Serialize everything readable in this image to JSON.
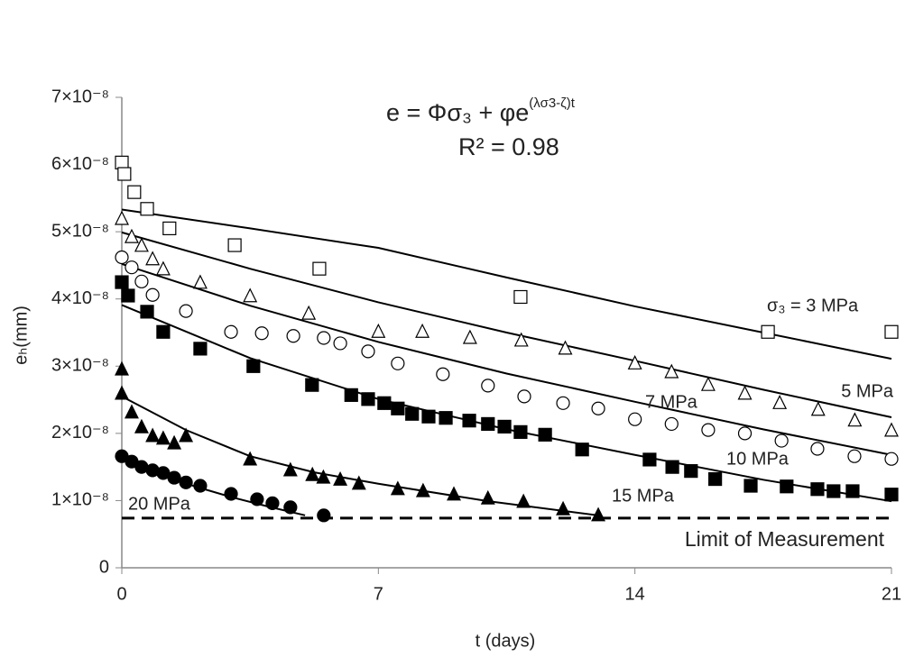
{
  "chart_data": {
    "type": "scatter",
    "equation": "e =  Φσ₃ + φe",
    "equation_exponent": "(λσ3-ζ)t",
    "r_squared": "R² = 0.98",
    "xlabel": "t (days)",
    "ylabel": "eₕ(mm)",
    "xlim": [
      0,
      21
    ],
    "xticks": [
      0,
      7,
      14,
      21
    ],
    "ylim": [
      0,
      7e-08
    ],
    "yticks": [
      0,
      {
        "value": 1e-08,
        "label": "1×10⁻⁸"
      },
      {
        "value": 2e-08,
        "label": "2×10⁻⁸"
      },
      {
        "value": 3e-08,
        "label": "3×10⁻⁸"
      },
      {
        "value": 4e-08,
        "label": "4×10⁻⁸"
      },
      {
        "value": 5e-08,
        "label": "5×10⁻⁸"
      },
      {
        "value": 6e-08,
        "label": "6×10⁻⁸"
      },
      {
        "value": 7e-08,
        "label": "7×10⁻⁸"
      }
    ],
    "limit_line": {
      "value": 7.4e-09,
      "label": "Limit of Measurement"
    },
    "series": [
      {
        "name": "σ₃  = 3 MPa",
        "marker": "square",
        "filled": false,
        "color": "#000000",
        "x": [
          0,
          0.07,
          0.34,
          0.69,
          1.3,
          3.08,
          5.39,
          10.88,
          17.63,
          21
        ],
        "values": [
          6.03e-08,
          5.86e-08,
          5.59e-08,
          5.34e-08,
          5.05e-08,
          4.8e-08,
          4.45e-08,
          4.03e-08,
          3.51e-08,
          3.51e-08
        ],
        "fit": {
          "x": [
            0,
            3.5,
            7,
            10.5,
            14,
            17.5,
            21
          ],
          "values": [
            5.33e-08,
            5.05e-08,
            4.76e-08,
            4.32e-08,
            3.89e-08,
            3.5e-08,
            3.11e-08
          ]
        }
      },
      {
        "name": "5 MPa",
        "marker": "triangle",
        "filled": false,
        "color": "#000000",
        "x": [
          0,
          0.27,
          0.54,
          0.84,
          1.13,
          2.14,
          3.5,
          5.1,
          7.0,
          8.2,
          9.5,
          10.9,
          12.1,
          14.0,
          15.0,
          16.0,
          17.0,
          17.95,
          19.0,
          20.0,
          21.0
        ],
        "values": [
          5.19e-08,
          4.92e-08,
          4.79e-08,
          4.59e-08,
          4.44e-08,
          4.24e-08,
          4.04e-08,
          3.78e-08,
          3.51e-08,
          3.51e-08,
          3.42e-08,
          3.38e-08,
          3.26e-08,
          3.04e-08,
          2.91e-08,
          2.72e-08,
          2.59e-08,
          2.45e-08,
          2.35e-08,
          2.19e-08,
          2.04e-08
        ],
        "fit": {
          "x": [
            0,
            3.5,
            7,
            10.5,
            14,
            17.5,
            21
          ],
          "values": [
            4.99e-08,
            4.45e-08,
            3.95e-08,
            3.5e-08,
            3.08e-08,
            2.65e-08,
            2.24e-08
          ]
        }
      },
      {
        "name": "7 MPa",
        "marker": "circle",
        "filled": false,
        "color": "#000000",
        "x": [
          0,
          0.27,
          0.54,
          0.84,
          1.75,
          2.98,
          3.82,
          4.68,
          5.51,
          5.96,
          6.72,
          7.53,
          8.76,
          9.99,
          10.98,
          12.04,
          13.0,
          14.0,
          15.0,
          16.0,
          17.0,
          18.0,
          18.98,
          19.99,
          21.0
        ],
        "values": [
          4.62e-08,
          4.47e-08,
          4.26e-08,
          4.06e-08,
          3.82e-08,
          3.51e-08,
          3.49e-08,
          3.45e-08,
          3.42e-08,
          3.34e-08,
          3.22e-08,
          3.04e-08,
          2.88e-08,
          2.71e-08,
          2.55e-08,
          2.45e-08,
          2.37e-08,
          2.21e-08,
          2.14e-08,
          2.05e-08,
          2e-08,
          1.89e-08,
          1.77e-08,
          1.66e-08,
          1.62e-08
        ],
        "fit": {
          "x": [
            0,
            3.5,
            7,
            10.5,
            14,
            17.5,
            21
          ],
          "values": [
            4.52e-08,
            3.9e-08,
            3.36e-08,
            2.89e-08,
            2.47e-08,
            2.06e-08,
            1.68e-08
          ]
        }
      },
      {
        "name": "10 MPa",
        "marker": "square",
        "filled": true,
        "color": "#000000",
        "x": [
          0,
          0.17,
          0.69,
          1.13,
          2.14,
          3.59,
          5.19,
          6.26,
          6.72,
          7.16,
          7.53,
          7.92,
          8.37,
          8.84,
          9.48,
          9.99,
          10.44,
          10.88,
          11.55,
          12.56,
          14.4,
          15.02,
          15.53,
          16.19,
          17.16,
          18.14,
          18.98,
          19.42,
          19.94,
          21.0
        ],
        "values": [
          4.25e-08,
          4.05e-08,
          3.81e-08,
          3.51e-08,
          3.26e-08,
          3e-08,
          2.72e-08,
          2.57e-08,
          2.51e-08,
          2.45e-08,
          2.37e-08,
          2.29e-08,
          2.25e-08,
          2.23e-08,
          2.19e-08,
          2.14e-08,
          2.1e-08,
          2.02e-08,
          1.98e-08,
          1.76e-08,
          1.61e-08,
          1.5e-08,
          1.44e-08,
          1.32e-08,
          1.22e-08,
          1.21e-08,
          1.17e-08,
          1.14e-08,
          1.14e-08,
          1.09e-08
        ],
        "fit": {
          "x": [
            0,
            3.5,
            7,
            10.5,
            14,
            17.5,
            21
          ],
          "values": [
            3.91e-08,
            3.12e-08,
            2.51e-08,
            2.06e-08,
            1.68e-08,
            1.31e-08,
            9.9e-09
          ]
        }
      },
      {
        "name": "15 MPa",
        "marker": "triangle",
        "filled": true,
        "color": "#000000",
        "x": [
          0,
          0,
          0.27,
          0.54,
          0.84,
          1.13,
          1.43,
          1.75,
          3.5,
          4.6,
          5.2,
          5.5,
          5.96,
          6.47,
          7.53,
          8.22,
          9.06,
          9.99,
          10.96,
          12.04,
          13.0
        ],
        "values": [
          2.95e-08,
          2.59e-08,
          2.31e-08,
          2.09e-08,
          1.96e-08,
          1.92e-08,
          1.85e-08,
          1.96e-08,
          1.61e-08,
          1.45e-08,
          1.38e-08,
          1.34e-08,
          1.31e-08,
          1.25e-08,
          1.17e-08,
          1.14e-08,
          1.09e-08,
          1.03e-08,
          9.8e-09,
          8.7e-09,
          7.8e-09
        ],
        "fit": {
          "x": [
            0,
            1.75,
            3.5,
            5.25,
            7,
            10,
            13
          ],
          "values": [
            2.55e-08,
            2.05e-08,
            1.66e-08,
            1.42e-08,
            1.25e-08,
            9.9e-09,
            7.8e-09
          ]
        }
      },
      {
        "name": "20 MPa",
        "marker": "circle",
        "filled": true,
        "color": "#000000",
        "x": [
          0,
          0.27,
          0.54,
          0.84,
          1.13,
          1.43,
          1.75,
          2.14,
          2.98,
          3.69,
          4.11,
          4.6,
          5.51
        ],
        "values": [
          1.66e-08,
          1.58e-08,
          1.5e-08,
          1.45e-08,
          1.41e-08,
          1.34e-08,
          1.27e-08,
          1.22e-08,
          1.1e-08,
          1.02e-08,
          9.6e-09,
          9e-09,
          7.8e-09
        ],
        "fit": {
          "x": [
            0,
            1,
            2,
            3,
            4,
            5
          ],
          "values": [
            1.61e-08,
            1.4e-08,
            1.21e-08,
            1.05e-08,
            9.1e-09,
            7.8e-09
          ]
        }
      }
    ]
  }
}
